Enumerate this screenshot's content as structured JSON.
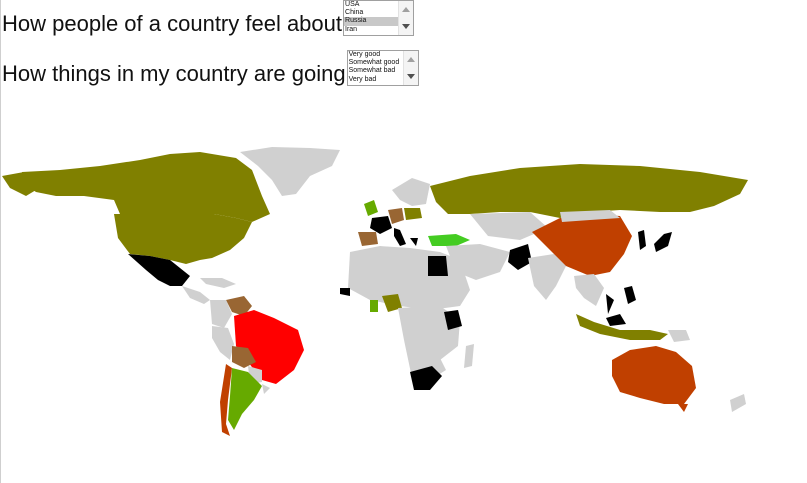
{
  "questions": {
    "q1": {
      "label": "How people of a country feel about",
      "options": [
        "USA",
        "China",
        "Russia",
        "Iran"
      ],
      "selected": "Russia"
    },
    "q2": {
      "label": "How things in my country are going",
      "options": [
        "Very good",
        "Somewhat good",
        "Somewhat bad",
        "Very bad"
      ],
      "selected": ""
    }
  },
  "colors": {
    "no_data": "#d0d0d0",
    "olive": "#808000",
    "brown": "#996633",
    "orange_red": "#c04000",
    "red": "#ff0000",
    "green": "#66aa00",
    "bright_green": "#44cc22",
    "black": "#000000"
  }
}
